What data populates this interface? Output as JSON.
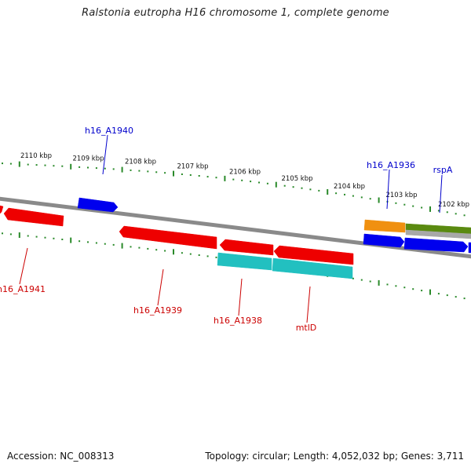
{
  "title": "Ralstonia eutropha H16 chromosome 1, complete genome",
  "accession": "Accession: NC_008313",
  "summary": "Topology: circular; Length: 4,052,032 bp; Genes: 3,711",
  "colors": {
    "tick": "#2a8a2a",
    "backbone": "#8a8a8a",
    "label_forward": "#0000cc",
    "label_reverse": "#cc0000",
    "gene_blue": "#0000ee",
    "gene_red": "#ee0000",
    "gene_cyan": "#22c0c0",
    "gene_orange": "#f09010",
    "gene_green": "#5a8a10",
    "gene_gray": "#a8a8a8"
  },
  "scale_labels": [
    "2110 kbp",
    "2109 kbp",
    "2108 kbp",
    "2107 kbp",
    "2106 kbp",
    "2105 kbp",
    "2104 kbp",
    "2103 kbp",
    "2102 kbp"
  ],
  "genes": [
    {
      "id": "h16_A1940",
      "strand": "+",
      "color": "gene_blue",
      "labeled": true
    },
    {
      "id": "h16_A1936",
      "strand": "+",
      "color": "gene_blue",
      "labeled": true
    },
    {
      "id": "rspA",
      "strand": "+",
      "color": "gene_blue",
      "labeled": true
    },
    {
      "id": "h16_A1941",
      "strand": "-",
      "color": "gene_red",
      "labeled": true
    },
    {
      "id": "h16_A1939",
      "strand": "-",
      "color": "gene_red",
      "labeled": true
    },
    {
      "id": "h16_A1938",
      "strand": "-",
      "color": "gene_red",
      "labeled": true
    },
    {
      "id": "mtlD",
      "strand": "-",
      "color": "gene_red",
      "labeled": true
    }
  ]
}
